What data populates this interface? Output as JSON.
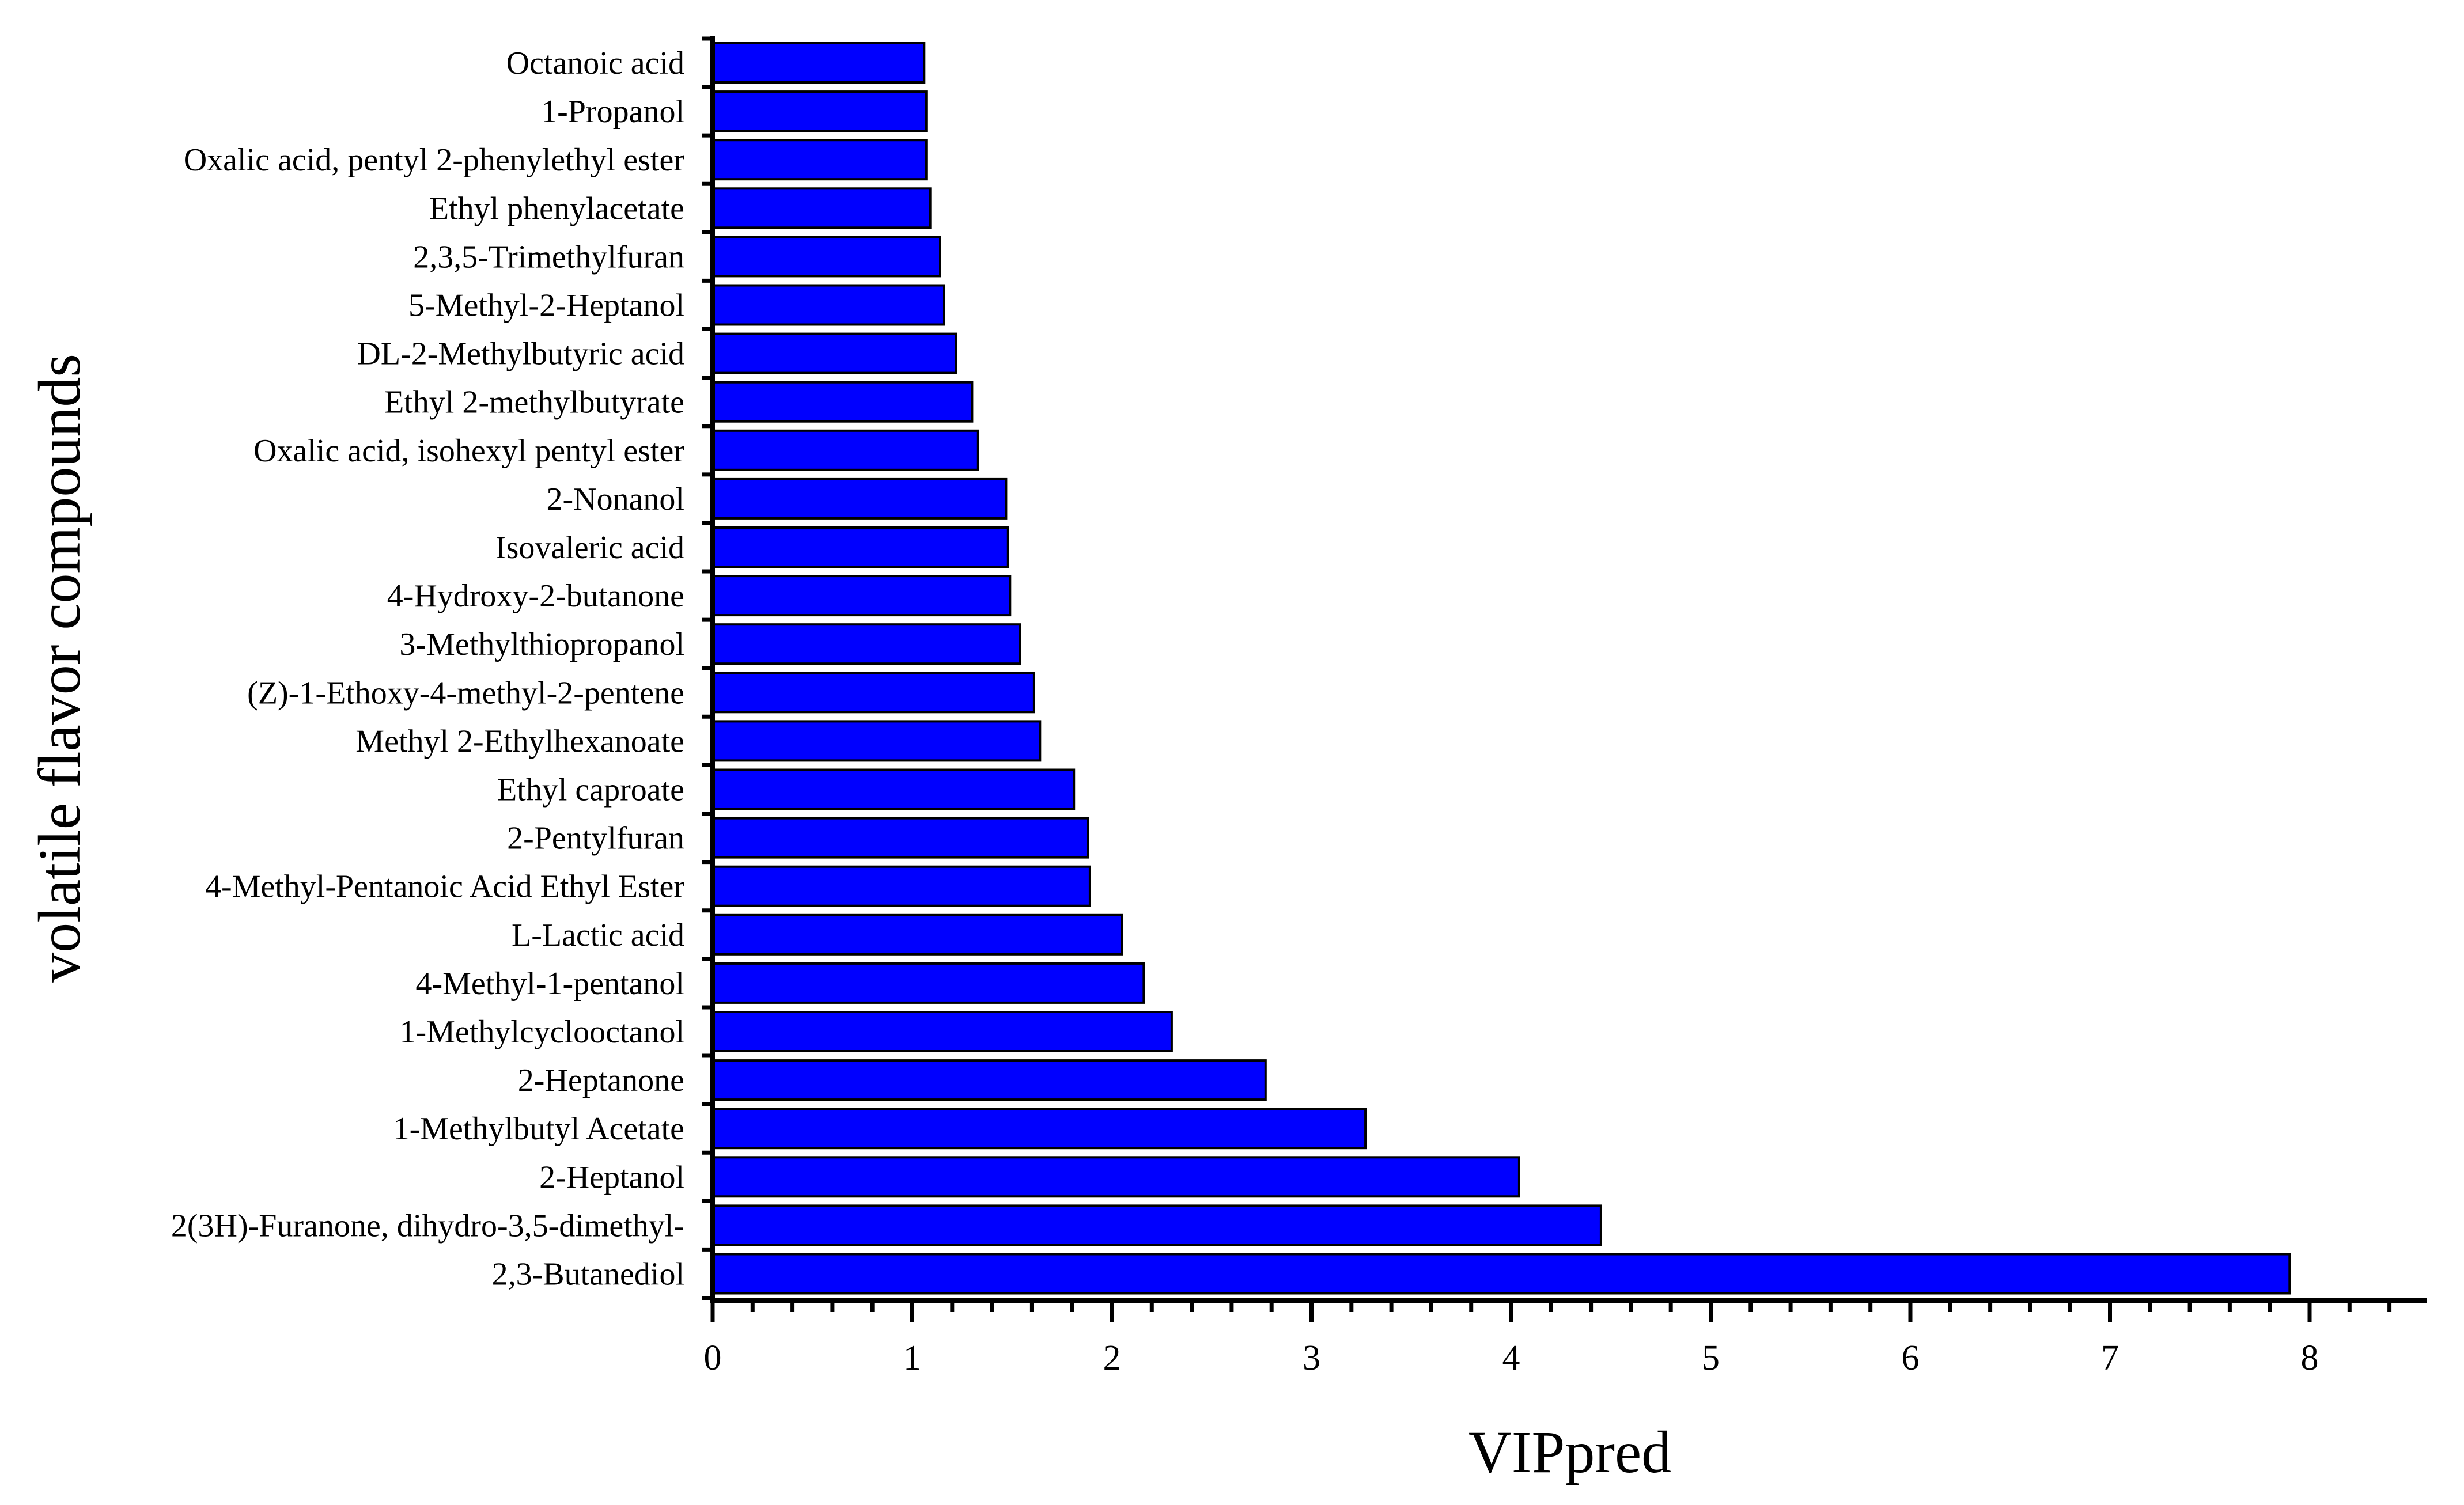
{
  "chart_data": {
    "type": "bar",
    "orientation": "horizontal",
    "title": "",
    "xlabel": "VIPpred",
    "ylabel": "volatile flavor compounds",
    "xlim": [
      0,
      8.6
    ],
    "xticks": [
      0,
      1,
      2,
      3,
      4,
      5,
      6,
      7,
      8
    ],
    "grid": false,
    "bar_color": "#0000ff",
    "categories": [
      "Octanoic acid",
      "1-Propanol",
      "Oxalic acid, pentyl 2-phenylethyl ester",
      "Ethyl phenylacetate",
      "2,3,5-Trimethylfuran",
      "5-Methyl-2-Heptanol",
      "DL-2-Methylbutyric acid",
      "Ethyl 2-methylbutyrate",
      "Oxalic acid, isohexyl pentyl ester",
      "2-Nonanol",
      "Isovaleric acid",
      "4-Hydroxy-2-butanone",
      "3-Methylthiopropanol",
      "(Z)-1-Ethoxy-4-methyl-2-pentene",
      "Methyl 2-Ethylhexanoate",
      "Ethyl caproate",
      "2-Pentylfuran",
      "4-Methyl-Pentanoic Acid Ethyl Ester",
      "L-Lactic acid",
      "4-Methyl-1-pentanol",
      "1-Methylcyclooctanol",
      "2-Heptanone",
      "1-Methylbutyl Acetate",
      "2-Heptanol",
      "2(3H)-Furanone, dihydro-3,5-dimethyl-",
      "2,3-Butanediol"
    ],
    "values": [
      1.06,
      1.07,
      1.07,
      1.09,
      1.14,
      1.16,
      1.22,
      1.3,
      1.33,
      1.47,
      1.48,
      1.49,
      1.54,
      1.61,
      1.64,
      1.81,
      1.88,
      1.89,
      2.05,
      2.16,
      2.3,
      2.77,
      3.27,
      4.04,
      4.45,
      7.9
    ]
  }
}
